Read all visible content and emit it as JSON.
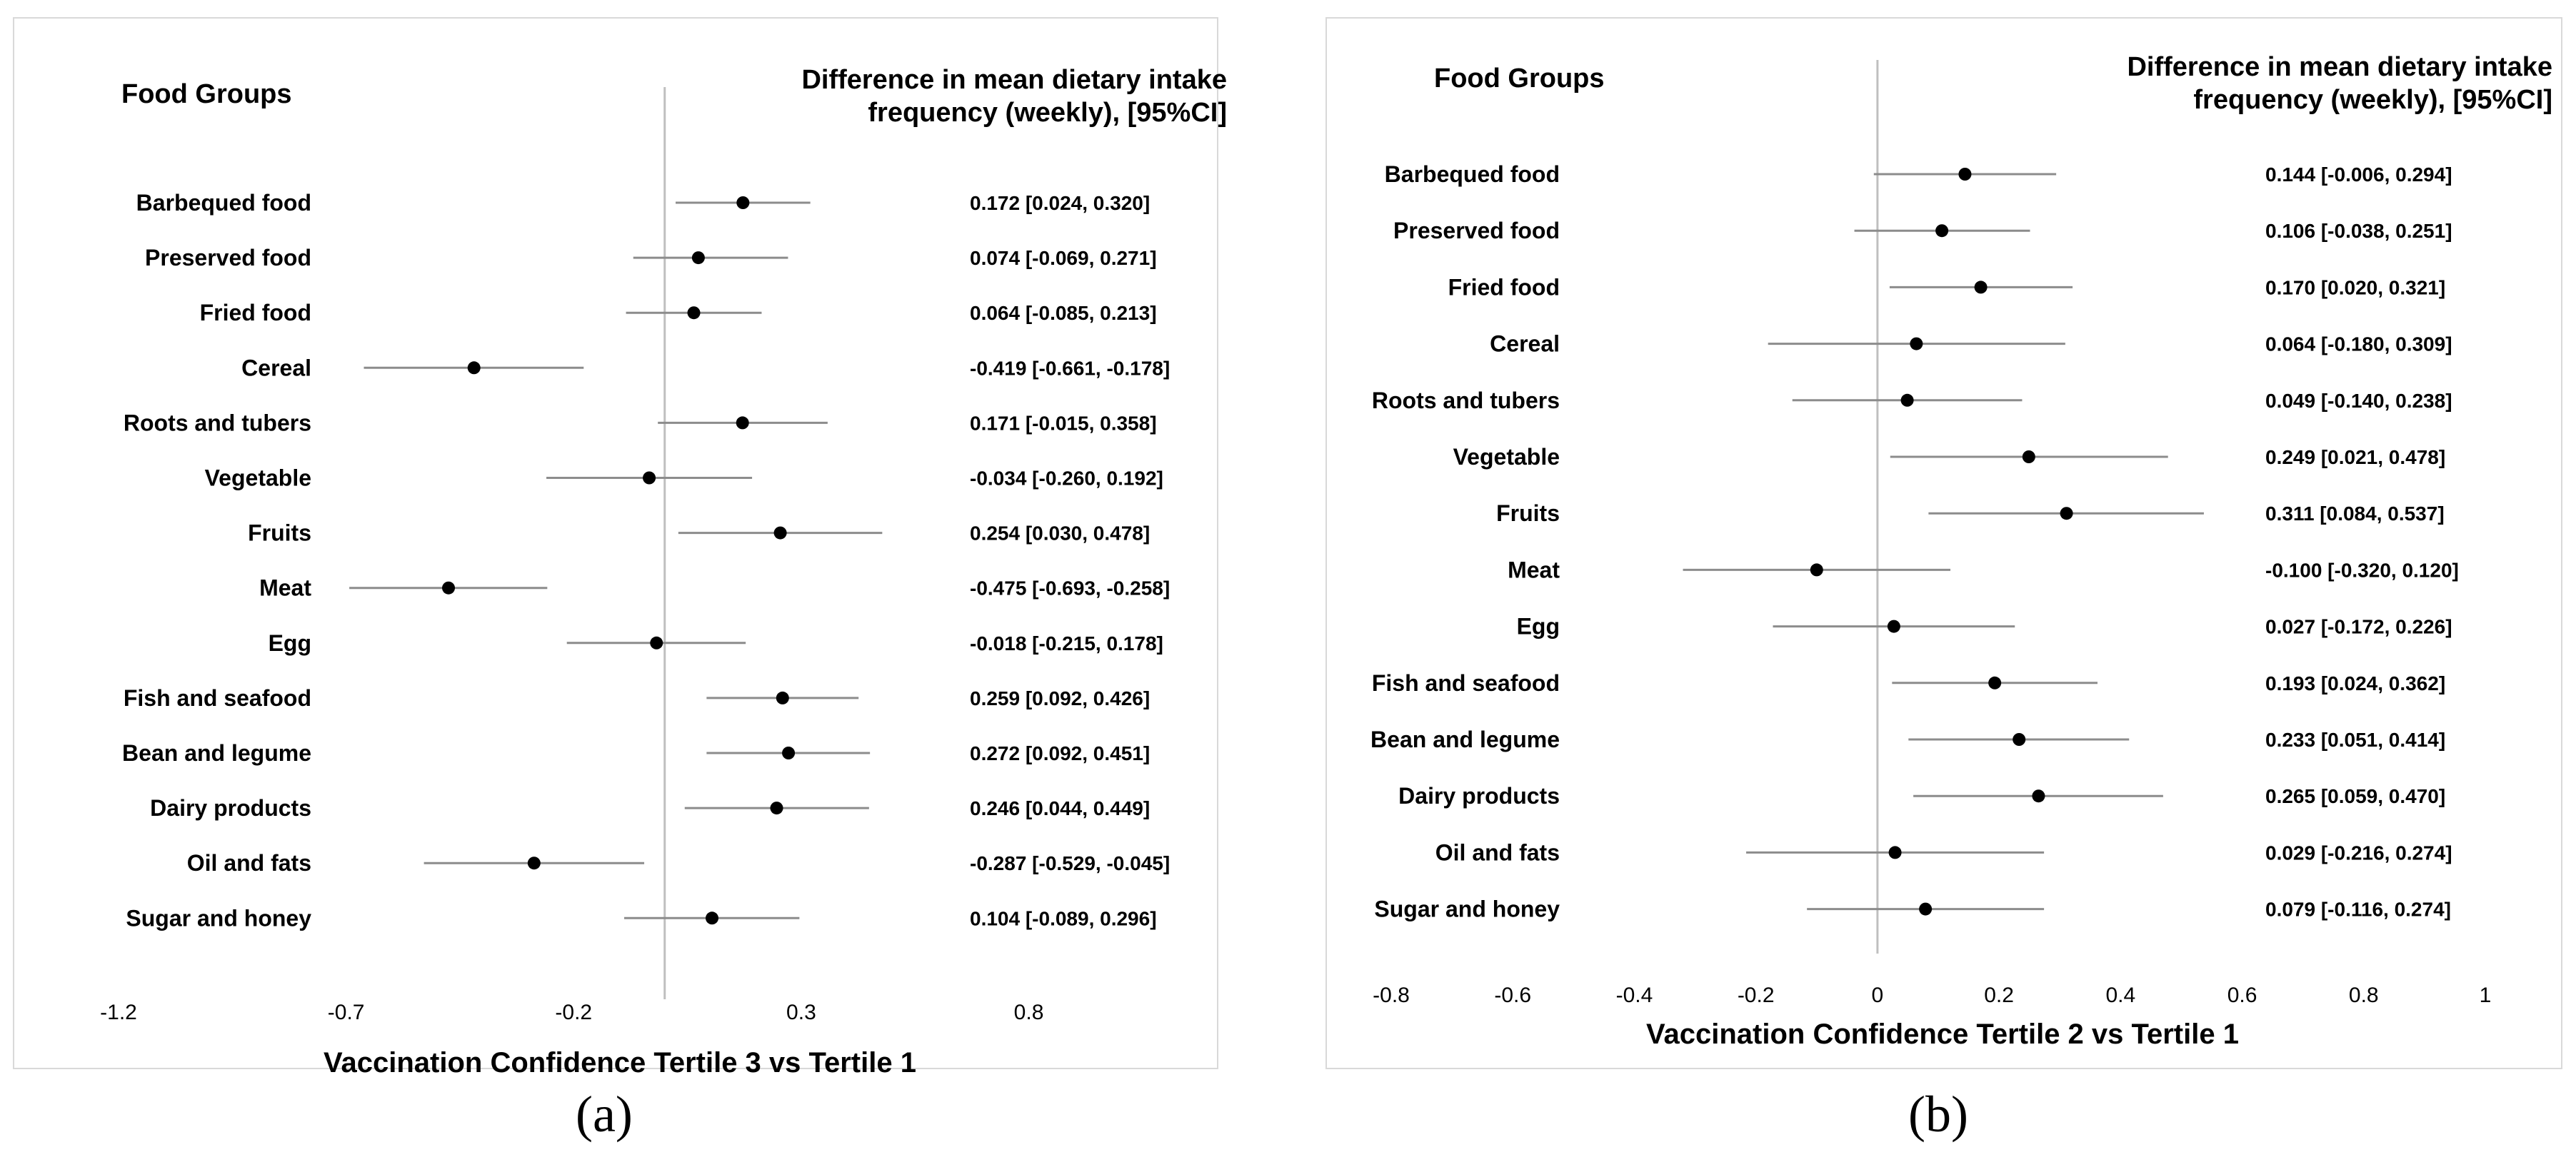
{
  "captions": {
    "a": "(a)",
    "b": "(b)"
  },
  "colors": {
    "point": "#000000",
    "ci_line": "#8c8c8c",
    "zero_line": "#bfbfbf",
    "border": "#d9d9d9"
  },
  "chart_data": [
    {
      "type": "forest",
      "panel": "a",
      "left_header": "Food Groups",
      "right_header_line1": "Difference in mean dietary intake",
      "right_header_line2": "frequency (weekly), [95%CI]",
      "xlabel": "Vaccination Confidence Tertile 3 vs Tertile 1",
      "xlim": [
        -1.2,
        1.0
      ],
      "xticks": [
        -1.2,
        -0.7,
        -0.2,
        0.3,
        0.8
      ],
      "xtick_labels": [
        "-1.2",
        "-0.7",
        "-0.2",
        "0.3",
        "0.8"
      ],
      "rows": [
        {
          "label": "Barbequed food",
          "est": 0.172,
          "lo": 0.024,
          "hi": 0.32,
          "text": "0.172 [0.024, 0.320]"
        },
        {
          "label": "Preserved food",
          "est": 0.074,
          "lo": -0.069,
          "hi": 0.271,
          "text": "0.074 [-0.069, 0.271]"
        },
        {
          "label": "Fried food",
          "est": 0.064,
          "lo": -0.085,
          "hi": 0.213,
          "text": "0.064 [-0.085, 0.213]"
        },
        {
          "label": "Cereal",
          "est": -0.419,
          "lo": -0.661,
          "hi": -0.178,
          "text": "-0.419 [-0.661, -0.178]"
        },
        {
          "label": "Roots and tubers",
          "est": 0.171,
          "lo": -0.015,
          "hi": 0.358,
          "text": "0.171 [-0.015, 0.358]"
        },
        {
          "label": "Vegetable",
          "est": -0.034,
          "lo": -0.26,
          "hi": 0.192,
          "text": "-0.034 [-0.260, 0.192]"
        },
        {
          "label": "Fruits",
          "est": 0.254,
          "lo": 0.03,
          "hi": 0.478,
          "text": "0.254 [0.030, 0.478]"
        },
        {
          "label": "Meat",
          "est": -0.475,
          "lo": -0.693,
          "hi": -0.258,
          "text": "-0.475 [-0.693, -0.258]"
        },
        {
          "label": "Egg",
          "est": -0.018,
          "lo": -0.215,
          "hi": 0.178,
          "text": "-0.018 [-0.215, 0.178]"
        },
        {
          "label": "Fish and seafood",
          "est": 0.259,
          "lo": 0.092,
          "hi": 0.426,
          "text": "0.259 [0.092, 0.426]"
        },
        {
          "label": "Bean and legume",
          "est": 0.272,
          "lo": 0.092,
          "hi": 0.451,
          "text": "0.272 [0.092, 0.451]"
        },
        {
          "label": "Dairy products",
          "est": 0.246,
          "lo": 0.044,
          "hi": 0.449,
          "text": "0.246 [0.044, 0.449]"
        },
        {
          "label": "Oil and fats",
          "est": -0.287,
          "lo": -0.529,
          "hi": -0.045,
          "text": "-0.287 [-0.529, -0.045]"
        },
        {
          "label": "Sugar and honey",
          "est": 0.104,
          "lo": -0.089,
          "hi": 0.296,
          "text": "0.104 [-0.089, 0.296]"
        }
      ]
    },
    {
      "type": "forest",
      "panel": "b",
      "left_header": "Food Groups",
      "right_header_line1": "Difference in mean dietary intake",
      "right_header_line2": "frequency (weekly), [95%CI]",
      "xlabel": "Vaccination Confidence Tertile 2 vs Tertile 1",
      "xlim": [
        -0.8,
        1.0
      ],
      "xticks": [
        -0.8,
        -0.6,
        -0.4,
        -0.2,
        0,
        0.2,
        0.4,
        0.6,
        0.8,
        1
      ],
      "xtick_labels": [
        "-0.8",
        "-0.6",
        "-0.4",
        "-0.2",
        "0",
        "0.2",
        "0.4",
        "0.6",
        "0.8",
        "1"
      ],
      "rows": [
        {
          "label": "Barbequed food",
          "est": 0.144,
          "lo": -0.006,
          "hi": 0.294,
          "text": "0.144 [-0.006, 0.294]"
        },
        {
          "label": "Preserved food",
          "est": 0.106,
          "lo": -0.038,
          "hi": 0.251,
          "text": "0.106 [-0.038, 0.251]"
        },
        {
          "label": "Fried food",
          "est": 0.17,
          "lo": 0.02,
          "hi": 0.321,
          "text": "0.170 [0.020, 0.321]"
        },
        {
          "label": "Cereal",
          "est": 0.064,
          "lo": -0.18,
          "hi": 0.309,
          "text": "0.064 [-0.180, 0.309]"
        },
        {
          "label": "Roots and tubers",
          "est": 0.049,
          "lo": -0.14,
          "hi": 0.238,
          "text": "0.049 [-0.140, 0.238]"
        },
        {
          "label": "Vegetable",
          "est": 0.249,
          "lo": 0.021,
          "hi": 0.478,
          "text": "0.249 [0.021, 0.478]"
        },
        {
          "label": "Fruits",
          "est": 0.311,
          "lo": 0.084,
          "hi": 0.537,
          "text": "0.311 [0.084, 0.537]"
        },
        {
          "label": "Meat",
          "est": -0.1,
          "lo": -0.32,
          "hi": 0.12,
          "text": "-0.100 [-0.320, 0.120]"
        },
        {
          "label": "Egg",
          "est": 0.027,
          "lo": -0.172,
          "hi": 0.226,
          "text": "0.027 [-0.172, 0.226]"
        },
        {
          "label": "Fish and seafood",
          "est": 0.193,
          "lo": 0.024,
          "hi": 0.362,
          "text": "0.193 [0.024, 0.362]"
        },
        {
          "label": "Bean and legume",
          "est": 0.233,
          "lo": 0.051,
          "hi": 0.414,
          "text": "0.233 [0.051, 0.414]"
        },
        {
          "label": "Dairy products",
          "est": 0.265,
          "lo": 0.059,
          "hi": 0.47,
          "text": "0.265 [0.059, 0.470]"
        },
        {
          "label": "Oil and fats",
          "est": 0.029,
          "lo": -0.216,
          "hi": 0.274,
          "text": "0.029 [-0.216, 0.274]"
        },
        {
          "label": "Sugar and honey",
          "est": 0.079,
          "lo": -0.116,
          "hi": 0.274,
          "text": "0.079 [-0.116, 0.274]"
        }
      ]
    }
  ]
}
